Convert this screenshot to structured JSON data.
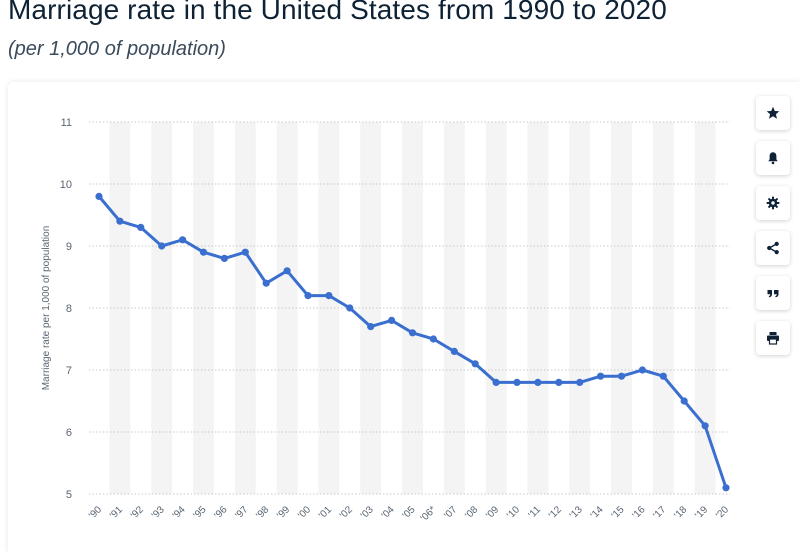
{
  "header": {
    "title": "Marriage rate in the United States from 1990 to 2020",
    "subtitle": "(per 1,000 of population)"
  },
  "toolbar": {
    "buttons": [
      {
        "icon": "star-icon",
        "label": "favorite"
      },
      {
        "icon": "bell-icon",
        "label": "notification"
      },
      {
        "icon": "gear-icon",
        "label": "settings"
      },
      {
        "icon": "share-icon",
        "label": "share"
      },
      {
        "icon": "quote-icon",
        "label": "cite"
      },
      {
        "icon": "printer-icon",
        "label": "print"
      }
    ]
  },
  "chart_data": {
    "type": "line",
    "title": "",
    "xlabel": "",
    "ylabel": "Marriage rate per 1,000 of population",
    "categories": [
      "'90",
      "'91",
      "'92",
      "'93",
      "'94",
      "'95",
      "'96",
      "'97",
      "'98",
      "'99",
      "'00",
      "'01",
      "'02",
      "'03",
      "'04",
      "'05",
      "'06*",
      "'07",
      "'08",
      "'09",
      "'10",
      "'11",
      "'12",
      "'13",
      "'14",
      "'15",
      "'16",
      "'17",
      "'18",
      "'19",
      "'20"
    ],
    "series": [
      {
        "values": [
          9.8,
          9.4,
          9.3,
          9.0,
          9.1,
          8.9,
          8.8,
          8.9,
          8.4,
          8.6,
          8.2,
          8.2,
          8.0,
          7.7,
          7.8,
          7.6,
          7.5,
          7.3,
          7.1,
          6.8,
          6.8,
          6.8,
          6.8,
          6.8,
          6.9,
          6.9,
          7.0,
          6.9,
          6.5,
          6.1,
          5.1
        ]
      }
    ],
    "ylim": [
      5,
      11
    ],
    "yticks": [
      5,
      6,
      7,
      8,
      9,
      10,
      11
    ],
    "grid": true,
    "line_color": "#3a6fd0",
    "band_color": "#f4f4f4"
  }
}
